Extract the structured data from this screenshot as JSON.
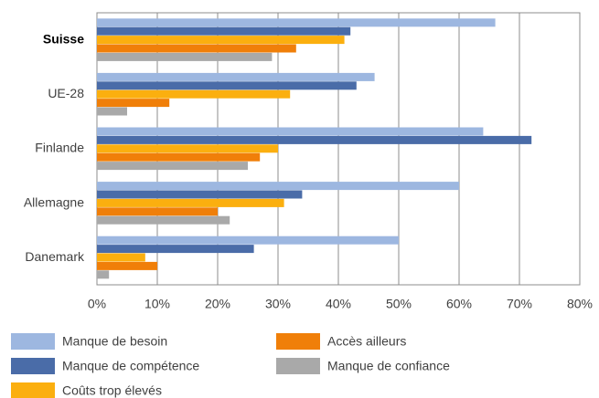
{
  "chart_data": {
    "type": "hbar",
    "categories": [
      "Suisse",
      "UE-28",
      "Finlande",
      "Allemagne",
      "Danemark"
    ],
    "series": [
      {
        "name": "Manque de besoin",
        "color": "#9db7e0",
        "values": [
          66,
          46,
          64,
          60,
          50
        ]
      },
      {
        "name": "Manque de compétence",
        "color": "#4a6ca8",
        "values": [
          42,
          43,
          72,
          34,
          26
        ]
      },
      {
        "name": "Coûts trop élevés",
        "color": "#fbaf0f",
        "values": [
          41,
          32,
          30,
          31,
          8
        ]
      },
      {
        "name": "Accès ailleurs",
        "color": "#f07f09",
        "values": [
          33,
          12,
          27,
          20,
          10
        ]
      },
      {
        "name": "Manque de confiance",
        "color": "#a9a9a9",
        "values": [
          29,
          5,
          25,
          22,
          2
        ]
      }
    ],
    "xlim": [
      0,
      80
    ],
    "xticks": [
      {
        "value": 0,
        "label": "0%"
      },
      {
        "value": 10,
        "label": "10%"
      },
      {
        "value": 20,
        "label": "20%"
      },
      {
        "value": 30,
        "label": "30%"
      },
      {
        "value": 40,
        "label": "40%"
      },
      {
        "value": 50,
        "label": "50%"
      },
      {
        "value": 60,
        "label": "60%"
      },
      {
        "value": 70,
        "label": "70%"
      },
      {
        "value": 80,
        "label": "80%"
      }
    ],
    "grid": true
  }
}
